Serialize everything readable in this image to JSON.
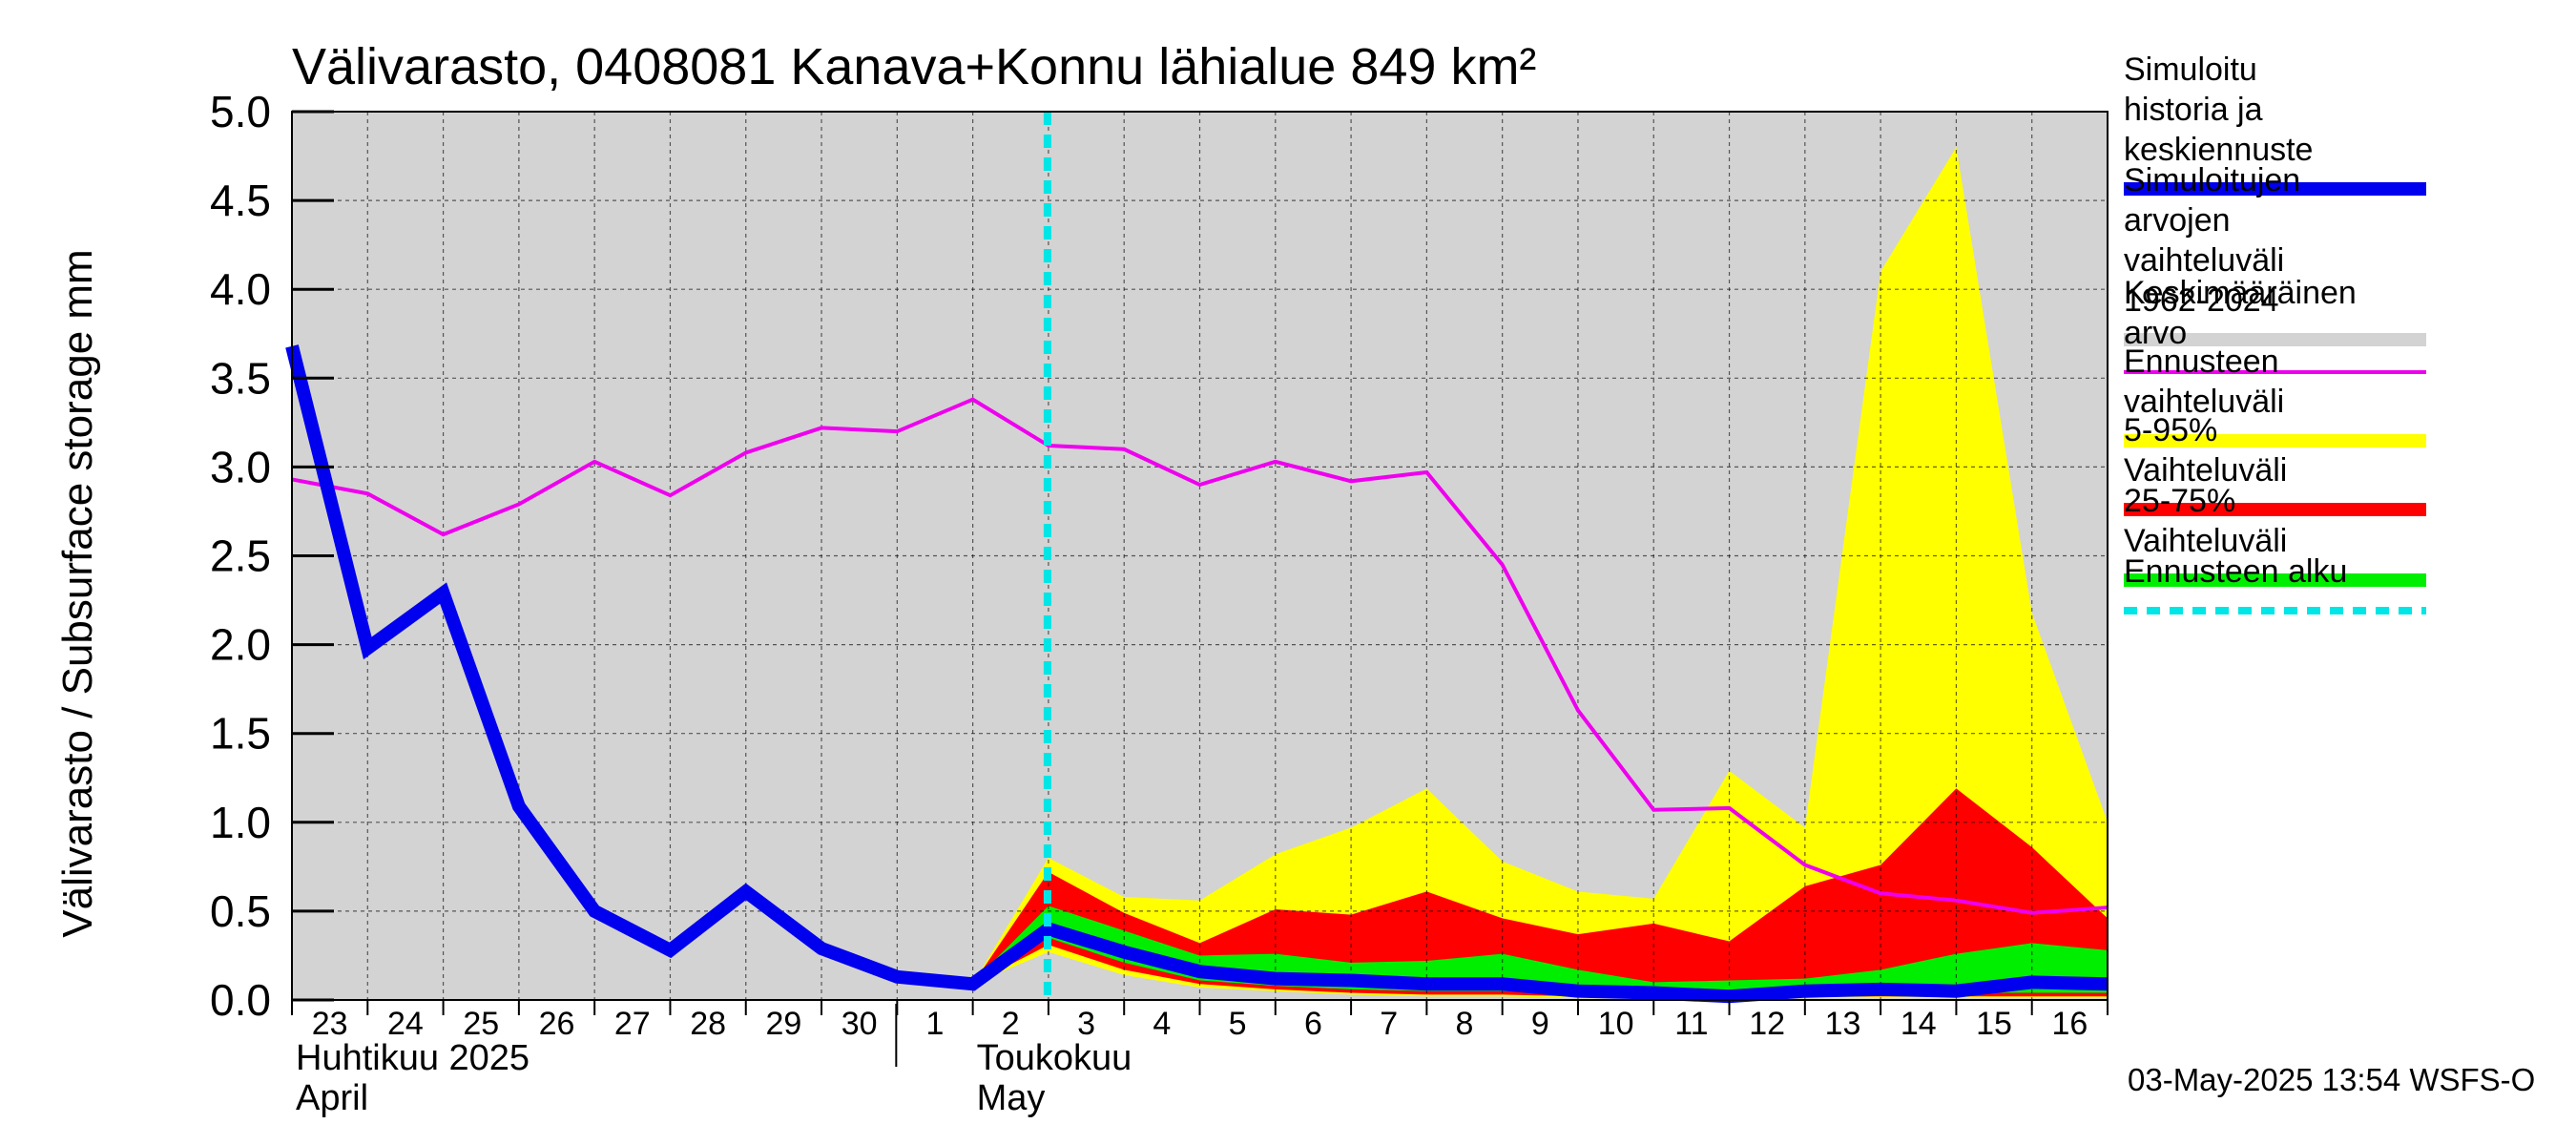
{
  "chart_data": {
    "type": "area",
    "title": "Välivarasto, 0408081 Kanava+Konnu lähialue 849 km²",
    "ylabel": "Välivarasto / Subsurface storage  mm",
    "ylim": [
      0,
      5
    ],
    "yticks": [
      "0.0",
      "0.5",
      "1.0",
      "1.5",
      "2.0",
      "2.5",
      "3.0",
      "3.5",
      "4.0",
      "4.5",
      "5.0"
    ],
    "x_labels": [
      "23",
      "24",
      "25",
      "26",
      "27",
      "28",
      "29",
      "30",
      "1",
      "2",
      "3",
      "4",
      "5",
      "6",
      "7",
      "8",
      "9",
      "10",
      "11",
      "12",
      "13",
      "14",
      "15",
      "16"
    ],
    "month_labels": [
      {
        "line1": "Huhtikuu  2025",
        "line2": "April",
        "at_index": 0
      },
      {
        "line1": "Toukokuu",
        "line2": "May",
        "at_index": 9
      }
    ],
    "forecast_start_index": 10,
    "grid": true,
    "series": [
      {
        "name": "Simuloitu historia ja keskiennuste",
        "color": "#0000ee",
        "x": [
          0,
          1,
          2,
          3,
          4,
          5,
          6,
          7,
          8,
          9,
          10,
          11,
          12,
          13,
          14,
          15,
          16,
          17,
          18,
          19,
          20,
          21,
          22,
          23,
          24
        ],
        "values": [
          3.68,
          1.98,
          2.29,
          1.09,
          0.5,
          0.28,
          0.61,
          0.29,
          0.13,
          0.09,
          0.4,
          0.27,
          0.16,
          0.12,
          0.11,
          0.09,
          0.09,
          0.05,
          0.04,
          0.02,
          0.05,
          0.06,
          0.05,
          0.1,
          0.09
        ]
      },
      {
        "name": "Keskimääräinen arvo",
        "color": "#ee00ee",
        "x": [
          0,
          1,
          2,
          3,
          4,
          5,
          6,
          7,
          8,
          9,
          10,
          11,
          12,
          13,
          14,
          15,
          16,
          17,
          18,
          19,
          20,
          21,
          22,
          23,
          24
        ],
        "values": [
          2.93,
          2.85,
          2.62,
          2.79,
          3.03,
          2.84,
          3.08,
          3.22,
          3.2,
          3.38,
          3.12,
          3.1,
          2.9,
          3.03,
          2.92,
          2.97,
          2.45,
          1.63,
          1.07,
          1.08,
          0.76,
          0.6,
          0.56,
          0.49,
          0.52
        ]
      },
      {
        "name": "Ennusteen vaihteluväli",
        "color": "#ffff00",
        "x": [
          9,
          10,
          11,
          12,
          13,
          14,
          15,
          16,
          17,
          18,
          19,
          20,
          21,
          22,
          23,
          24
        ],
        "upper": [
          0.09,
          0.8,
          0.58,
          0.56,
          0.82,
          0.97,
          1.19,
          0.78,
          0.61,
          0.57,
          1.29,
          0.97,
          4.1,
          4.8,
          2.18,
          1.0
        ],
        "lower": [
          0.09,
          0.27,
          0.14,
          0.07,
          0.05,
          0.03,
          0.02,
          0.02,
          0.01,
          0.01,
          0.01,
          0.01,
          0.01,
          0.01,
          0.01,
          0.01
        ]
      },
      {
        "name": "5-95% Vaihteluväli",
        "color": "#ff0000",
        "x": [
          9,
          10,
          11,
          12,
          13,
          14,
          15,
          16,
          17,
          18,
          19,
          20,
          21,
          22,
          23,
          24
        ],
        "upper": [
          0.09,
          0.72,
          0.49,
          0.32,
          0.51,
          0.48,
          0.61,
          0.46,
          0.37,
          0.43,
          0.33,
          0.64,
          0.76,
          1.19,
          0.86,
          0.46
        ],
        "lower": [
          0.09,
          0.31,
          0.17,
          0.09,
          0.06,
          0.04,
          0.03,
          0.03,
          0.02,
          0.02,
          0.02,
          0.02,
          0.02,
          0.02,
          0.02,
          0.02
        ]
      },
      {
        "name": "25-75% Vaihteluväli",
        "color": "#00ee00",
        "x": [
          9,
          10,
          11,
          12,
          13,
          14,
          15,
          16,
          17,
          18,
          19,
          20,
          21,
          22,
          23,
          24
        ],
        "upper": [
          0.1,
          0.53,
          0.39,
          0.25,
          0.26,
          0.21,
          0.22,
          0.26,
          0.17,
          0.1,
          0.11,
          0.12,
          0.17,
          0.26,
          0.32,
          0.28
        ],
        "lower": [
          0.09,
          0.35,
          0.21,
          0.11,
          0.08,
          0.06,
          0.05,
          0.05,
          0.04,
          0.04,
          0.04,
          0.04,
          0.04,
          0.04,
          0.04,
          0.04
        ]
      }
    ],
    "legend": [
      {
        "label": "Simuloitu historia ja keskiennuste",
        "color": "#0000ee",
        "style": "thick"
      },
      {
        "label": "Simuloitujen arvojen vaihteluväli 1962-2024",
        "color": "#d3d3d3",
        "style": "thick"
      },
      {
        "label": "Keskimääräinen arvo",
        "color": "#ee00ee",
        "style": "thin"
      },
      {
        "label": "Ennusteen vaihteluväli",
        "color": "#ffff00",
        "style": "thick"
      },
      {
        "label": "5-95% Vaihteluväli",
        "color": "#ff0000",
        "style": "thick"
      },
      {
        "label": "25-75% Vaihteluväli",
        "color": "#00ee00",
        "style": "thick"
      },
      {
        "label": "Ennusteen alku",
        "color": "#00e5e5",
        "style": "dashed"
      }
    ],
    "legend_placement": "right"
  },
  "footer": "03-May-2025 13:54 WSFS-O"
}
